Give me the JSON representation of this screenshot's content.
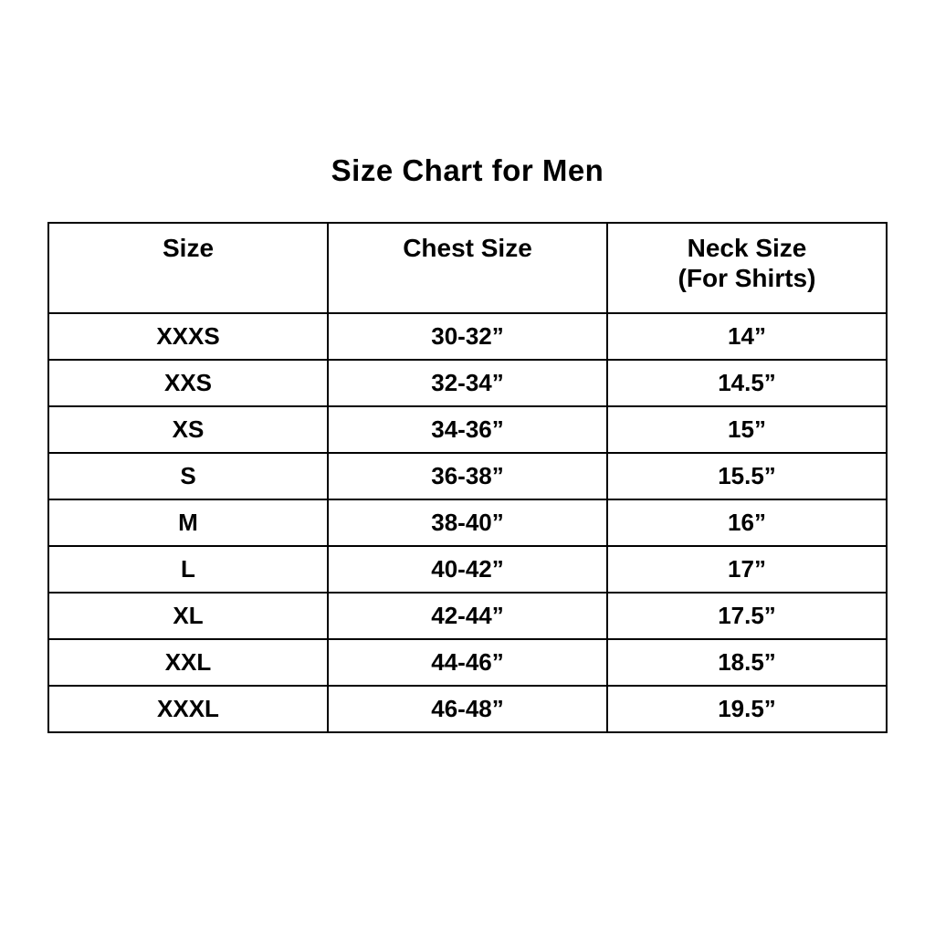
{
  "page": {
    "background": "#ffffff",
    "title": "Size Chart for Men"
  },
  "chart_data": {
    "type": "table",
    "title": "Size Chart for Men",
    "columns": [
      {
        "label": "Size",
        "sublabel": ""
      },
      {
        "label": "Chest Size",
        "sublabel": ""
      },
      {
        "label": "Neck Size",
        "sublabel": "(For Shirts)"
      }
    ],
    "rows": [
      [
        "XXXS",
        "30-32”",
        "14”"
      ],
      [
        "XXS",
        "32-34”",
        "14.5”"
      ],
      [
        "XS",
        "34-36”",
        "15”"
      ],
      [
        "S",
        "36-38”",
        "15.5”"
      ],
      [
        "M",
        "38-40”",
        "16”"
      ],
      [
        "L",
        "40-42”",
        "17”"
      ],
      [
        "XL",
        "42-44”",
        "17.5”"
      ],
      [
        "XXL",
        "44-46”",
        "18.5”"
      ],
      [
        "XXXL",
        "46-48”",
        "19.5”"
      ]
    ],
    "layout": {
      "grid": true,
      "columns_equal_width": true
    },
    "colors": {
      "border": "#000000",
      "text": "#000000",
      "background": "#ffffff"
    }
  }
}
